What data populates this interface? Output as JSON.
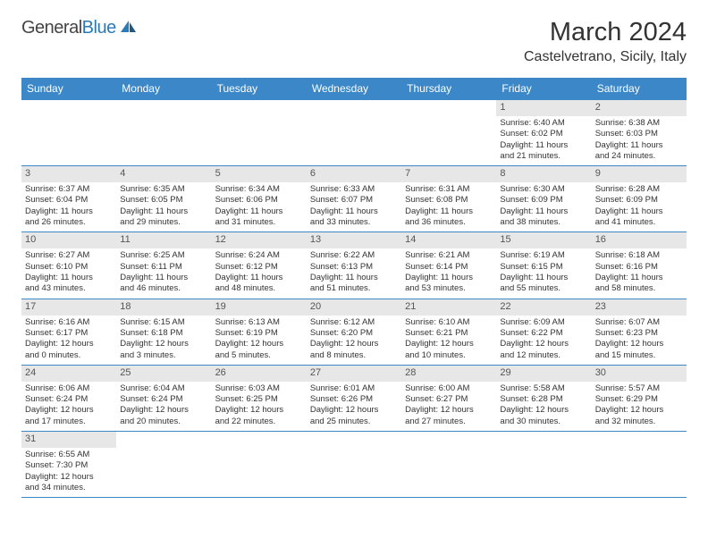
{
  "logo": {
    "general": "General",
    "blue": "Blue"
  },
  "title": "March 2024",
  "location": "Castelvetrano, Sicily, Italy",
  "header_bg": "#3b87c8",
  "daynum_bg": "#e7e7e7",
  "weekdays": [
    "Sunday",
    "Monday",
    "Tuesday",
    "Wednesday",
    "Thursday",
    "Friday",
    "Saturday"
  ],
  "weeks": [
    [
      null,
      null,
      null,
      null,
      null,
      {
        "n": "1",
        "sr": "Sunrise: 6:40 AM",
        "ss": "Sunset: 6:02 PM",
        "dl1": "Daylight: 11 hours",
        "dl2": "and 21 minutes."
      },
      {
        "n": "2",
        "sr": "Sunrise: 6:38 AM",
        "ss": "Sunset: 6:03 PM",
        "dl1": "Daylight: 11 hours",
        "dl2": "and 24 minutes."
      }
    ],
    [
      {
        "n": "3",
        "sr": "Sunrise: 6:37 AM",
        "ss": "Sunset: 6:04 PM",
        "dl1": "Daylight: 11 hours",
        "dl2": "and 26 minutes."
      },
      {
        "n": "4",
        "sr": "Sunrise: 6:35 AM",
        "ss": "Sunset: 6:05 PM",
        "dl1": "Daylight: 11 hours",
        "dl2": "and 29 minutes."
      },
      {
        "n": "5",
        "sr": "Sunrise: 6:34 AM",
        "ss": "Sunset: 6:06 PM",
        "dl1": "Daylight: 11 hours",
        "dl2": "and 31 minutes."
      },
      {
        "n": "6",
        "sr": "Sunrise: 6:33 AM",
        "ss": "Sunset: 6:07 PM",
        "dl1": "Daylight: 11 hours",
        "dl2": "and 33 minutes."
      },
      {
        "n": "7",
        "sr": "Sunrise: 6:31 AM",
        "ss": "Sunset: 6:08 PM",
        "dl1": "Daylight: 11 hours",
        "dl2": "and 36 minutes."
      },
      {
        "n": "8",
        "sr": "Sunrise: 6:30 AM",
        "ss": "Sunset: 6:09 PM",
        "dl1": "Daylight: 11 hours",
        "dl2": "and 38 minutes."
      },
      {
        "n": "9",
        "sr": "Sunrise: 6:28 AM",
        "ss": "Sunset: 6:09 PM",
        "dl1": "Daylight: 11 hours",
        "dl2": "and 41 minutes."
      }
    ],
    [
      {
        "n": "10",
        "sr": "Sunrise: 6:27 AM",
        "ss": "Sunset: 6:10 PM",
        "dl1": "Daylight: 11 hours",
        "dl2": "and 43 minutes."
      },
      {
        "n": "11",
        "sr": "Sunrise: 6:25 AM",
        "ss": "Sunset: 6:11 PM",
        "dl1": "Daylight: 11 hours",
        "dl2": "and 46 minutes."
      },
      {
        "n": "12",
        "sr": "Sunrise: 6:24 AM",
        "ss": "Sunset: 6:12 PM",
        "dl1": "Daylight: 11 hours",
        "dl2": "and 48 minutes."
      },
      {
        "n": "13",
        "sr": "Sunrise: 6:22 AM",
        "ss": "Sunset: 6:13 PM",
        "dl1": "Daylight: 11 hours",
        "dl2": "and 51 minutes."
      },
      {
        "n": "14",
        "sr": "Sunrise: 6:21 AM",
        "ss": "Sunset: 6:14 PM",
        "dl1": "Daylight: 11 hours",
        "dl2": "and 53 minutes."
      },
      {
        "n": "15",
        "sr": "Sunrise: 6:19 AM",
        "ss": "Sunset: 6:15 PM",
        "dl1": "Daylight: 11 hours",
        "dl2": "and 55 minutes."
      },
      {
        "n": "16",
        "sr": "Sunrise: 6:18 AM",
        "ss": "Sunset: 6:16 PM",
        "dl1": "Daylight: 11 hours",
        "dl2": "and 58 minutes."
      }
    ],
    [
      {
        "n": "17",
        "sr": "Sunrise: 6:16 AM",
        "ss": "Sunset: 6:17 PM",
        "dl1": "Daylight: 12 hours",
        "dl2": "and 0 minutes."
      },
      {
        "n": "18",
        "sr": "Sunrise: 6:15 AM",
        "ss": "Sunset: 6:18 PM",
        "dl1": "Daylight: 12 hours",
        "dl2": "and 3 minutes."
      },
      {
        "n": "19",
        "sr": "Sunrise: 6:13 AM",
        "ss": "Sunset: 6:19 PM",
        "dl1": "Daylight: 12 hours",
        "dl2": "and 5 minutes."
      },
      {
        "n": "20",
        "sr": "Sunrise: 6:12 AM",
        "ss": "Sunset: 6:20 PM",
        "dl1": "Daylight: 12 hours",
        "dl2": "and 8 minutes."
      },
      {
        "n": "21",
        "sr": "Sunrise: 6:10 AM",
        "ss": "Sunset: 6:21 PM",
        "dl1": "Daylight: 12 hours",
        "dl2": "and 10 minutes."
      },
      {
        "n": "22",
        "sr": "Sunrise: 6:09 AM",
        "ss": "Sunset: 6:22 PM",
        "dl1": "Daylight: 12 hours",
        "dl2": "and 12 minutes."
      },
      {
        "n": "23",
        "sr": "Sunrise: 6:07 AM",
        "ss": "Sunset: 6:23 PM",
        "dl1": "Daylight: 12 hours",
        "dl2": "and 15 minutes."
      }
    ],
    [
      {
        "n": "24",
        "sr": "Sunrise: 6:06 AM",
        "ss": "Sunset: 6:24 PM",
        "dl1": "Daylight: 12 hours",
        "dl2": "and 17 minutes."
      },
      {
        "n": "25",
        "sr": "Sunrise: 6:04 AM",
        "ss": "Sunset: 6:24 PM",
        "dl1": "Daylight: 12 hours",
        "dl2": "and 20 minutes."
      },
      {
        "n": "26",
        "sr": "Sunrise: 6:03 AM",
        "ss": "Sunset: 6:25 PM",
        "dl1": "Daylight: 12 hours",
        "dl2": "and 22 minutes."
      },
      {
        "n": "27",
        "sr": "Sunrise: 6:01 AM",
        "ss": "Sunset: 6:26 PM",
        "dl1": "Daylight: 12 hours",
        "dl2": "and 25 minutes."
      },
      {
        "n": "28",
        "sr": "Sunrise: 6:00 AM",
        "ss": "Sunset: 6:27 PM",
        "dl1": "Daylight: 12 hours",
        "dl2": "and 27 minutes."
      },
      {
        "n": "29",
        "sr": "Sunrise: 5:58 AM",
        "ss": "Sunset: 6:28 PM",
        "dl1": "Daylight: 12 hours",
        "dl2": "and 30 minutes."
      },
      {
        "n": "30",
        "sr": "Sunrise: 5:57 AM",
        "ss": "Sunset: 6:29 PM",
        "dl1": "Daylight: 12 hours",
        "dl2": "and 32 minutes."
      }
    ],
    [
      {
        "n": "31",
        "sr": "Sunrise: 6:55 AM",
        "ss": "Sunset: 7:30 PM",
        "dl1": "Daylight: 12 hours",
        "dl2": "and 34 minutes."
      },
      null,
      null,
      null,
      null,
      null,
      null
    ]
  ]
}
